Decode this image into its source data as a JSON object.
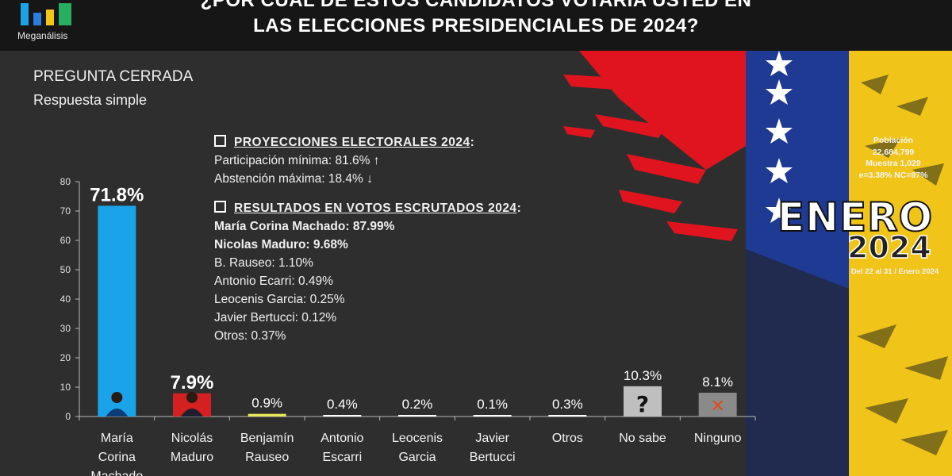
{
  "header": {
    "brand": "Meganálisis",
    "title_line1": "¿POR CUÁL DE ESTOS CANDIDATOS VOTARÍA USTED EN",
    "title_line2": "LAS ELECCIONES PRESIDENCIALES DE 2024?"
  },
  "question": {
    "type": "PREGUNTA  CERRADA",
    "answer_type": "Respuesta simple"
  },
  "projections": {
    "heading": "PROYECCIONES  ELECTORALES  2024",
    "participation": "Participación  mínima: 81.6%",
    "participation_arrow": "↑",
    "abstention": "Abstención  máxima: 18.4%",
    "abstention_arrow": "↓"
  },
  "results": {
    "heading": "RESULTADOS  EN  VOTOS  ESCRUTADOS  2024",
    "lines": [
      {
        "text": "María Corina Machado: 87.99%",
        "bold": true
      },
      {
        "text": "Nicolas  Maduro: 9.68%",
        "bold": true
      },
      {
        "text": "B. Rauseo: 1.10%",
        "bold": false
      },
      {
        "text": "Antonio Ecarri: 0.49%",
        "bold": false
      },
      {
        "text": "Leocenis Garcia: 0.25%",
        "bold": false
      },
      {
        "text": "Javier Bertucci: 0.12%",
        "bold": false
      },
      {
        "text": "Otros: 0.37%",
        "bold": false
      }
    ]
  },
  "study": {
    "population_label": "Población",
    "population": "22,684,799",
    "sample": "Muestra 1,029",
    "error": "e=3.38%  NC=97%",
    "month": "ENERO",
    "year": "2024",
    "date_range": "Del 22 al 31 / Enero 2024"
  },
  "colors": {
    "background": "#2e2e2e",
    "machado_bar": "#1aa3e8",
    "maduro_bar": "#d42020",
    "rauseo_bar": "#e8e85a",
    "no_sabe_bar": "#bfbfbf",
    "ninguno_bar": "#8a8a8a",
    "ninguno_mark": "#e04a1a",
    "flag_yellow": "#f0c419",
    "flag_blue": "#1f3a93",
    "flag_red": "#e0141e"
  },
  "chart_data": {
    "type": "bar",
    "categories": [
      [
        "María",
        "Corina",
        "Machado"
      ],
      [
        "Nicolás",
        "Maduro"
      ],
      [
        "Benjamín",
        "Rauseo"
      ],
      [
        "Antonio",
        "Escarri"
      ],
      [
        "Leocenis",
        "Garcia"
      ],
      [
        "Javier",
        "Bertucci"
      ],
      [
        "Otros"
      ],
      [
        "No sabe"
      ],
      [
        "Ninguno"
      ]
    ],
    "values": [
      71.8,
      7.9,
      0.9,
      0.4,
      0.2,
      0.1,
      0.3,
      10.3,
      8.1
    ],
    "data_labels": [
      "71.8%",
      "7.9%",
      "0.9%",
      "0.4%",
      "0.2%",
      "0.1%",
      "0.3%",
      "10.3%",
      "8.1%"
    ],
    "bar_colors": [
      "#1aa3e8",
      "#d42020",
      "#e8e85a",
      "#ffffff",
      "#ffffff",
      "#ffffff",
      "#ffffff",
      "#bfbfbf",
      "#8a8a8a"
    ],
    "bar_icons": [
      "candidate-photo",
      "candidate-photo",
      "",
      "",
      "",
      "",
      "",
      "question-mark",
      "x-mark"
    ],
    "yticks": [
      0,
      10,
      20,
      30,
      40,
      50,
      60,
      70,
      80
    ],
    "ylim": [
      0,
      80
    ],
    "grid": false,
    "legend": "none"
  }
}
